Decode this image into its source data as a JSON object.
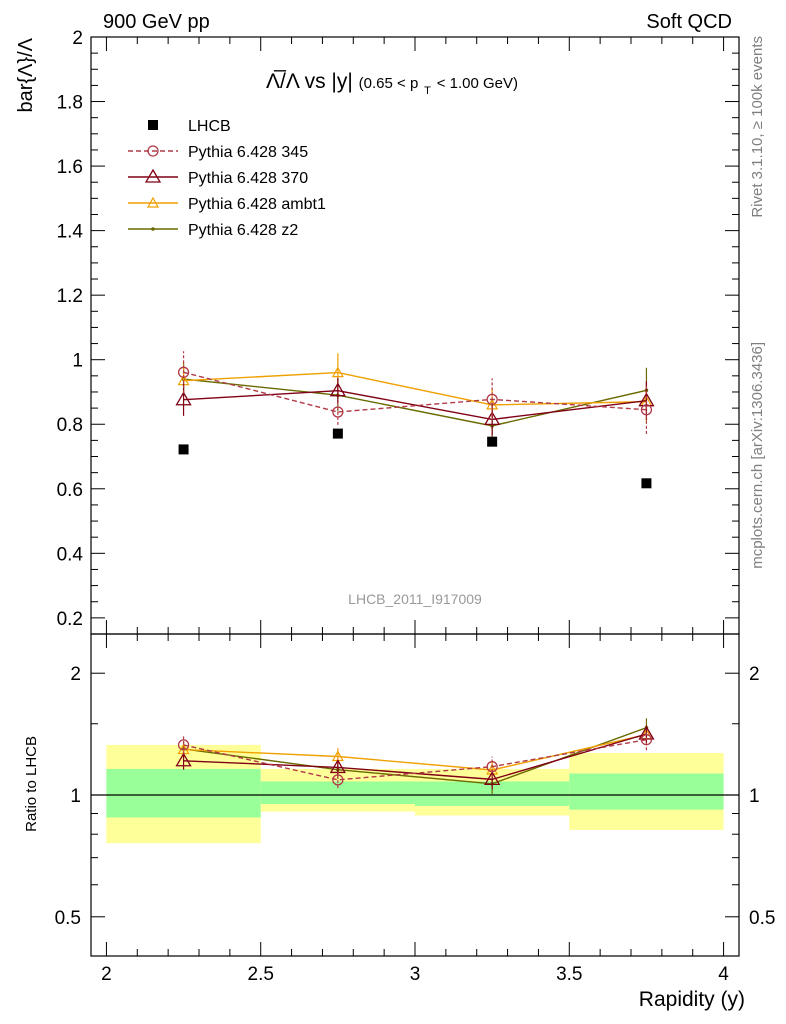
{
  "header": {
    "left": "900 GeV pp",
    "right": "Soft QCD"
  },
  "side_labels": {
    "rivet": "Rivet 3.1.10, ≥ 100k events",
    "mcplots": "mcplots.cern.ch [arXiv:1306.3436]"
  },
  "chart_data": [
    {
      "type": "line",
      "panel": "main",
      "title_main": "Λ̅/Λ vs |y|",
      "title_sub": "(0.65 < p",
      "title_sub_index": "T",
      "title_sub_end": " < 1.00 GeV)",
      "ylabel": "bar{Λ}/Λ",
      "watermark": "LHCB_2011_I917009",
      "xlim": [
        1.95,
        4.05
      ],
      "ylim": [
        0.15,
        2.0
      ],
      "yticks": [
        0.2,
        0.4,
        0.6,
        0.8,
        1,
        1.2,
        1.4,
        1.6,
        1.8,
        2
      ],
      "ytick_labels": [
        "0.2",
        "0.4",
        "0.6",
        "0.8",
        "1",
        "1.2",
        "1.4",
        "1.6",
        "1.8",
        "2"
      ],
      "x": [
        2.25,
        2.75,
        3.25,
        3.75
      ],
      "series": [
        {
          "name": "LHCB",
          "color": "#000000",
          "values": [
            0.722,
            0.771,
            0.746,
            0.617
          ],
          "errors": [
            0,
            0,
            0,
            0
          ]
        },
        {
          "name": "Pythia 6.428 345",
          "color": "#b03a48",
          "values": [
            0.961,
            0.838,
            0.877,
            0.845
          ],
          "errors": [
            0.065,
            0.04,
            0.065,
            0.075
          ]
        },
        {
          "name": "Pythia 6.428 370",
          "color": "#800015",
          "values": [
            0.876,
            0.904,
            0.815,
            0.873
          ],
          "errors": [
            0.05,
            0.04,
            0.05,
            0.06
          ]
        },
        {
          "name": "Pythia 6.428 ambt1",
          "color": "#f0a000",
          "values": [
            0.935,
            0.96,
            0.86,
            0.87
          ],
          "errors": [
            0.05,
            0.06,
            0.05,
            0.06
          ]
        },
        {
          "name": "Pythia 6.428 z2",
          "color": "#6a6a00",
          "values": [
            0.94,
            0.89,
            0.795,
            0.905
          ],
          "errors": [
            0.05,
            0.05,
            0.05,
            0.07
          ]
        }
      ]
    },
    {
      "type": "line",
      "panel": "ratio",
      "ylabel": "Ratio to LHCB",
      "xlabel": "Rapidity (y)",
      "xlim": [
        1.95,
        4.05
      ],
      "ylim_log": [
        0.4,
        2.5
      ],
      "yticks": [
        0.5,
        1,
        2
      ],
      "ytick_labels": [
        "0.5",
        "1",
        "2"
      ],
      "xticks": [
        2,
        2.5,
        3,
        3.5,
        4
      ],
      "xtick_labels": [
        "2",
        "2.5",
        "3",
        "3.5",
        "4"
      ],
      "x": [
        2.25,
        2.75,
        3.25,
        3.75
      ],
      "bins": [
        [
          2.0,
          2.5
        ],
        [
          2.5,
          3.0
        ],
        [
          3.0,
          3.5
        ],
        [
          3.5,
          4.0
        ]
      ],
      "band_inner": [
        [
          0.88,
          1.16
        ],
        [
          0.95,
          1.08
        ],
        [
          0.94,
          1.08
        ],
        [
          0.92,
          1.13
        ]
      ],
      "band_outer": [
        [
          0.76,
          1.33
        ],
        [
          0.91,
          1.16
        ],
        [
          0.89,
          1.16
        ],
        [
          0.82,
          1.27
        ]
      ],
      "series": [
        {
          "name": "Pythia 6.428 345",
          "color": "#b03a48",
          "values": [
            1.33,
            1.09,
            1.175,
            1.37
          ],
          "errors": [
            0.07,
            0.05,
            0.07,
            0.08
          ]
        },
        {
          "name": "Pythia 6.428 370",
          "color": "#800015",
          "values": [
            1.215,
            1.17,
            1.093,
            1.415
          ],
          "errors": [
            0.06,
            0.05,
            0.06,
            0.07
          ]
        },
        {
          "name": "Pythia 6.428 ambt1",
          "color": "#f0a000",
          "values": [
            1.295,
            1.245,
            1.153,
            1.41
          ],
          "errors": [
            0.06,
            0.06,
            0.06,
            0.07
          ]
        },
        {
          "name": "Pythia 6.428 z2",
          "color": "#6a6a00",
          "values": [
            1.3,
            1.155,
            1.066,
            1.467
          ],
          "errors": [
            0.06,
            0.06,
            0.06,
            0.08
          ]
        }
      ]
    }
  ]
}
